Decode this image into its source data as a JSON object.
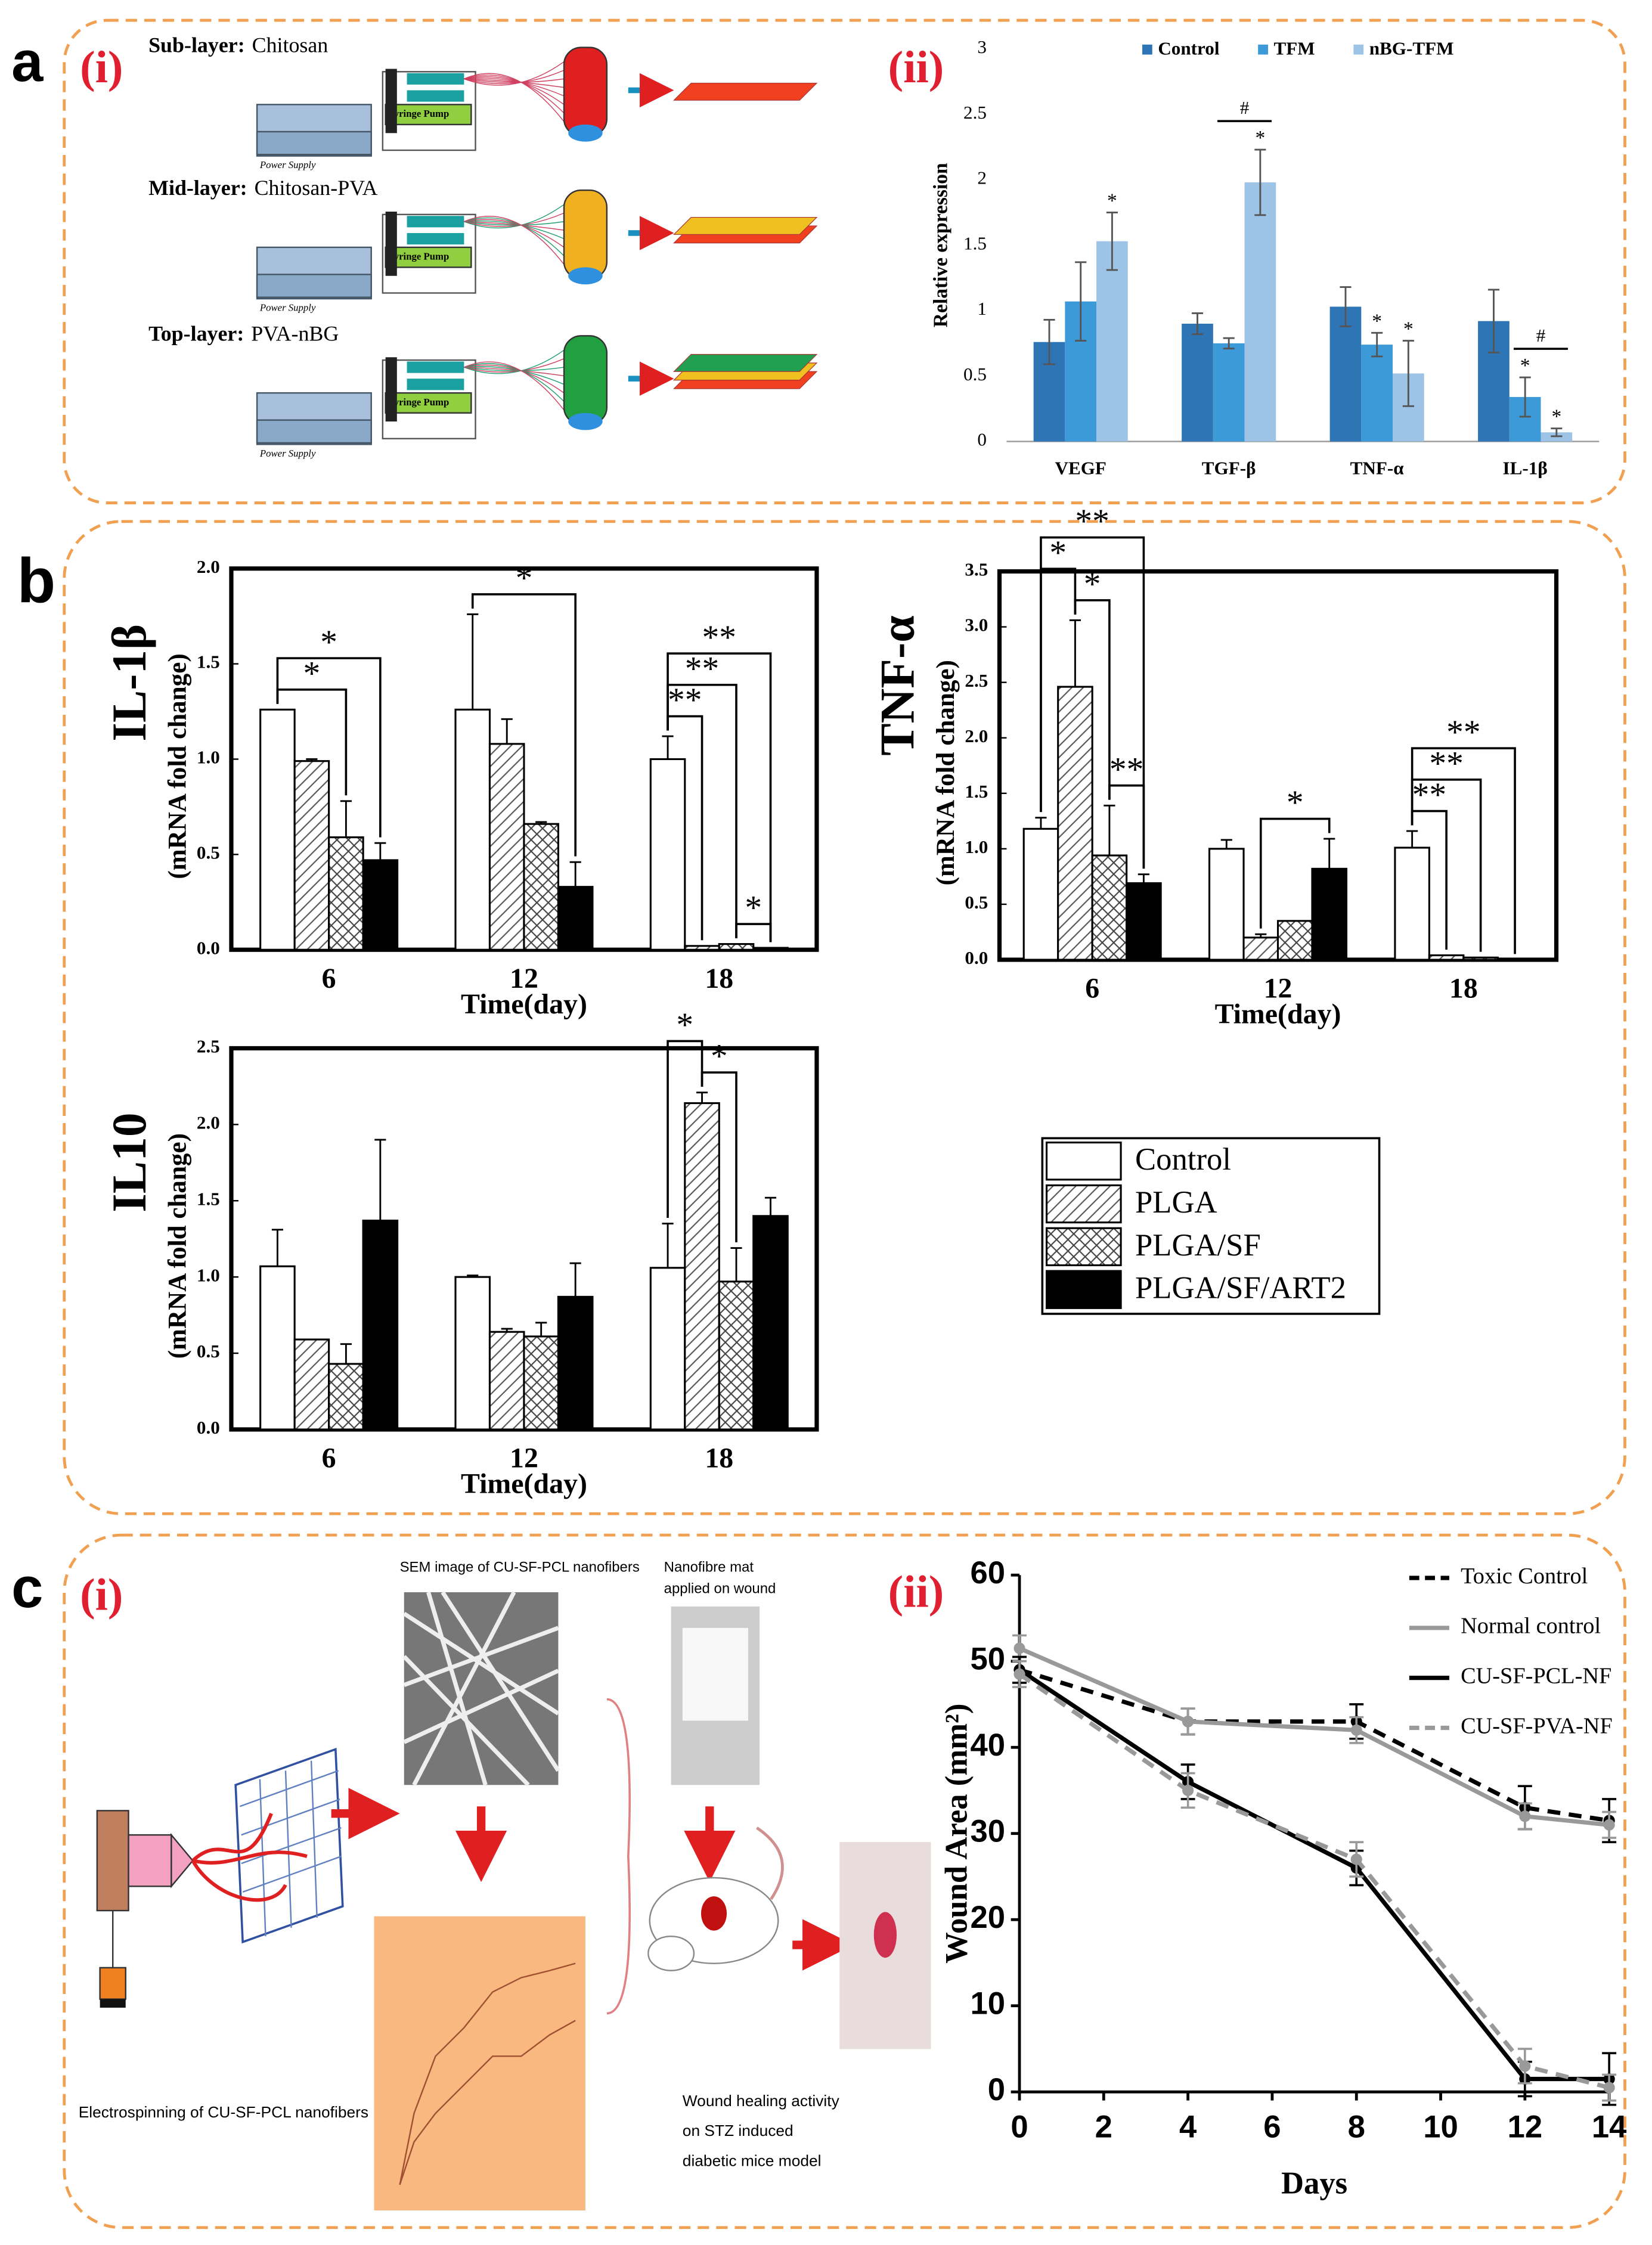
{
  "panel_labels": [
    "a",
    "(i)",
    "(ii)",
    "b",
    "c",
    "(i)",
    "(ii)"
  ],
  "diagram_a": {
    "rows": [
      {
        "layer": "Sub-layer:",
        "material": "Chitosan",
        "power": "Power Supply",
        "pump": "Syringe Pump"
      },
      {
        "layer": "Mid-layer:",
        "material": "Chitosan-PVA",
        "power": "Power Supply",
        "pump": "Syringe Pump"
      },
      {
        "layer": "Top-layer:",
        "material": "PVA-nBG",
        "power": "Power Supply",
        "pump": "Syringe Pump"
      }
    ]
  },
  "diagram_c": {
    "sem": "SEM image of CU-SF-PCL nanofibers",
    "mat": [
      "Nanofibre mat",
      "applied on wound"
    ],
    "electro": "Electrospinning of CU-SF-PCL nanofibers",
    "healing": [
      "Wound healing activity",
      "on STZ induced",
      "diabetic mice model"
    ]
  },
  "chart_data": [
    {
      "type": "bar",
      "ylabel": "Relative expression",
      "categories": [
        "VEGF",
        "TGF-β",
        "TNF-α",
        "IL-1β"
      ],
      "ylim": [
        0,
        3
      ],
      "yticks": [
        0,
        0.5,
        1,
        1.5,
        2,
        2.5,
        3
      ],
      "legend": "top",
      "series": [
        {
          "name": "Control",
          "color": "#2e75b6",
          "values": [
            0.76,
            0.9,
            1.03,
            0.92
          ],
          "errors": [
            0.17,
            0.08,
            0.15,
            0.24
          ]
        },
        {
          "name": "TFM",
          "color": "#3c9ad8",
          "values": [
            1.07,
            0.75,
            0.74,
            0.34
          ],
          "errors": [
            0.3,
            0.04,
            0.09,
            0.15
          ]
        },
        {
          "name": "nBG-TFM",
          "color": "#9dc3e6",
          "values": [
            1.53,
            1.98,
            0.52,
            0.07
          ],
          "errors": [
            0.22,
            0.25,
            0.25,
            0.03
          ]
        }
      ],
      "annotations": [
        {
          "text": "*",
          "category": 0,
          "series": [
            2
          ]
        },
        {
          "text": "*",
          "category": 1,
          "series": [
            2
          ]
        },
        {
          "text": "#",
          "category": 1,
          "series": [
            1,
            2
          ]
        },
        {
          "text": "*",
          "category": 2,
          "series": [
            1
          ]
        },
        {
          "text": "*",
          "category": 2,
          "series": [
            2
          ]
        },
        {
          "text": "*",
          "category": 3,
          "series": [
            1
          ]
        },
        {
          "text": "*",
          "category": 3,
          "series": [
            2
          ]
        },
        {
          "text": "#",
          "category": 3,
          "series": [
            1,
            2
          ]
        }
      ]
    },
    {
      "type": "bar",
      "ylabel": "IL-1β",
      "ylabel_sub": "(mRNA fold change)",
      "xlabel": "Time(day)",
      "categories": [
        "6",
        "12",
        "18"
      ],
      "ylim": [
        0,
        2
      ],
      "yticks": [
        {
          "value": 0,
          "label": "0.0"
        },
        {
          "value": 0.5,
          "label": "0.5"
        },
        {
          "value": 1,
          "label": "1.0"
        },
        {
          "value": 1.5,
          "label": "1.5"
        },
        {
          "value": 2,
          "label": "2.0"
        }
      ],
      "series": [
        {
          "name": "Control",
          "color": "#ffffff",
          "pattern": "none",
          "values": [
            1.26,
            1.26,
            1.0
          ],
          "errors": [
            null,
            0.5,
            0.12
          ]
        },
        {
          "name": "PLGA",
          "color": "#ffffff",
          "pattern": "diagonal",
          "values": [
            0.99,
            1.08,
            0.02
          ],
          "errors": [
            0.01,
            0.13,
            null
          ]
        },
        {
          "name": "PLGA/SF",
          "color": "#ffffff",
          "pattern": "cross",
          "values": [
            0.59,
            0.66,
            0.03
          ],
          "errors": [
            0.19,
            0.01,
            null
          ]
        },
        {
          "name": "PLGA/SF/ART2",
          "color": "#000000",
          "pattern": "none",
          "values": [
            0.47,
            0.33,
            0.01
          ],
          "errors": [
            0.09,
            0.13,
            null
          ]
        }
      ],
      "annotations": [
        {
          "text": "*",
          "category": 0,
          "series": [
            0,
            2
          ]
        },
        {
          "text": "*",
          "category": 0,
          "series": [
            0,
            3
          ]
        },
        {
          "text": "*",
          "category": 1,
          "series": [
            0,
            3
          ]
        },
        {
          "text": "*",
          "category": 2,
          "series": [
            2,
            3
          ]
        },
        {
          "text": "**",
          "category": 2,
          "series": [
            0,
            1
          ]
        },
        {
          "text": "**",
          "category": 2,
          "series": [
            0,
            2
          ]
        },
        {
          "text": "**",
          "category": 2,
          "series": [
            0,
            3
          ]
        }
      ]
    },
    {
      "type": "bar",
      "ylabel": "TNF-α",
      "ylabel_sub": "(mRNA fold change)",
      "xlabel": "Time(day)",
      "categories": [
        "6",
        "12",
        "18"
      ],
      "ylim": [
        0,
        3.5
      ],
      "yticks": [
        {
          "value": 0,
          "label": "0.0"
        },
        {
          "value": 0.5,
          "label": "0.5"
        },
        {
          "value": 1,
          "label": "1.0"
        },
        {
          "value": 1.5,
          "label": "1.5"
        },
        {
          "value": 2,
          "label": "2.0"
        },
        {
          "value": 2.5,
          "label": "2.5"
        },
        {
          "value": 3,
          "label": "3.0"
        },
        {
          "value": 3.5,
          "label": "3.5"
        }
      ],
      "series": [
        {
          "color": "#ffffff",
          "pattern": "none",
          "values": [
            1.18,
            1.0,
            1.01
          ],
          "errors": [
            0.1,
            0.08,
            0.15
          ]
        },
        {
          "color": "#ffffff",
          "pattern": "diagonal",
          "values": [
            2.46,
            0.2,
            0.04
          ],
          "errors": [
            0.6,
            0.03,
            null
          ]
        },
        {
          "color": "#ffffff",
          "pattern": "cross",
          "values": [
            0.94,
            0.35,
            0.02
          ],
          "errors": [
            0.45,
            null,
            null
          ]
        },
        {
          "color": "#000000",
          "pattern": "none",
          "values": [
            0.69,
            0.82,
            0.0
          ],
          "errors": [
            0.08,
            0.27,
            null
          ]
        }
      ],
      "annotations": [
        {
          "text": "**",
          "category": 0,
          "series": [
            2,
            3
          ]
        },
        {
          "text": "*",
          "category": 0,
          "series": [
            1,
            2
          ]
        },
        {
          "text": "*",
          "category": 0,
          "series": [
            0,
            1
          ]
        },
        {
          "text": "**",
          "category": 0,
          "series": [
            0,
            3
          ]
        },
        {
          "text": "*",
          "category": 1,
          "series": [
            1,
            3
          ]
        },
        {
          "text": "**",
          "category": 2,
          "series": [
            0,
            1
          ]
        },
        {
          "text": "**",
          "category": 2,
          "series": [
            0,
            2
          ]
        },
        {
          "text": "**",
          "category": 2,
          "series": [
            0,
            3
          ]
        }
      ]
    },
    {
      "type": "bar",
      "ylabel": "IL10",
      "ylabel_sub": "(mRNA fold change)",
      "xlabel": "Time(day)",
      "categories": [
        "6",
        "12",
        "18"
      ],
      "ylim": [
        0,
        2.5
      ],
      "yticks": [
        {
          "value": 0,
          "label": "0.0"
        },
        {
          "value": 0.5,
          "label": "0.5"
        },
        {
          "value": 1,
          "label": "1.0"
        },
        {
          "value": 1.5,
          "label": "1.5"
        },
        {
          "value": 2,
          "label": "2.0"
        },
        {
          "value": 2.5,
          "label": "2.5"
        }
      ],
      "series": [
        {
          "color": "#ffffff",
          "pattern": "none",
          "values": [
            1.07,
            1.0,
            1.06
          ],
          "errors": [
            0.24,
            0.01,
            0.29
          ]
        },
        {
          "color": "#ffffff",
          "pattern": "diagonal",
          "values": [
            0.59,
            0.64,
            2.14
          ],
          "errors": [
            null,
            0.02,
            0.07
          ]
        },
        {
          "color": "#ffffff",
          "pattern": "cross",
          "values": [
            0.43,
            0.61,
            0.97
          ],
          "errors": [
            0.13,
            0.09,
            0.22
          ]
        },
        {
          "color": "#000000",
          "pattern": "none",
          "values": [
            1.37,
            0.87,
            1.4
          ],
          "errors": [
            0.53,
            0.22,
            0.12
          ]
        }
      ],
      "annotations": [
        {
          "text": "*",
          "category": 2,
          "series": [
            1,
            2
          ]
        },
        {
          "text": "*",
          "category": 2,
          "series": [
            0,
            1
          ]
        }
      ]
    },
    {
      "type": "line",
      "xlabel": "Days",
      "ylabel": "Wound Area (mm²)",
      "x": [
        0,
        4,
        8,
        12,
        14
      ],
      "xlim": [
        0,
        14
      ],
      "xticks": [
        0,
        2,
        4,
        6,
        8,
        10,
        12,
        14
      ],
      "ylim": [
        0,
        60
      ],
      "yticks": [
        0,
        10,
        20,
        30,
        40,
        50,
        60
      ],
      "legend": "top-right",
      "series": [
        {
          "name": "Toxic Control",
          "color": "#000000",
          "dash": true,
          "values": [
            49,
            43,
            43,
            33,
            31.5
          ],
          "errors": [
            1.5,
            1.5,
            2,
            2.5,
            2.5
          ]
        },
        {
          "name": "Normal control",
          "color": "#999999",
          "dash": false,
          "values": [
            51.5,
            43,
            42,
            32,
            31
          ],
          "errors": [
            1.5,
            1.5,
            1.5,
            1.5,
            1.5
          ]
        },
        {
          "name": "CU-SF-PCL-NF",
          "color": "#000000",
          "dash": false,
          "values": [
            49,
            36,
            26,
            1.5,
            1.5
          ],
          "errors": [
            1.5,
            2,
            2,
            2,
            3
          ]
        },
        {
          "name": "CU-SF-PVA-NF",
          "color": "#999999",
          "dash": true,
          "values": [
            48.5,
            35,
            27,
            3,
            0.5
          ],
          "errors": [
            1.5,
            2,
            2,
            2,
            1.5
          ]
        }
      ]
    }
  ]
}
